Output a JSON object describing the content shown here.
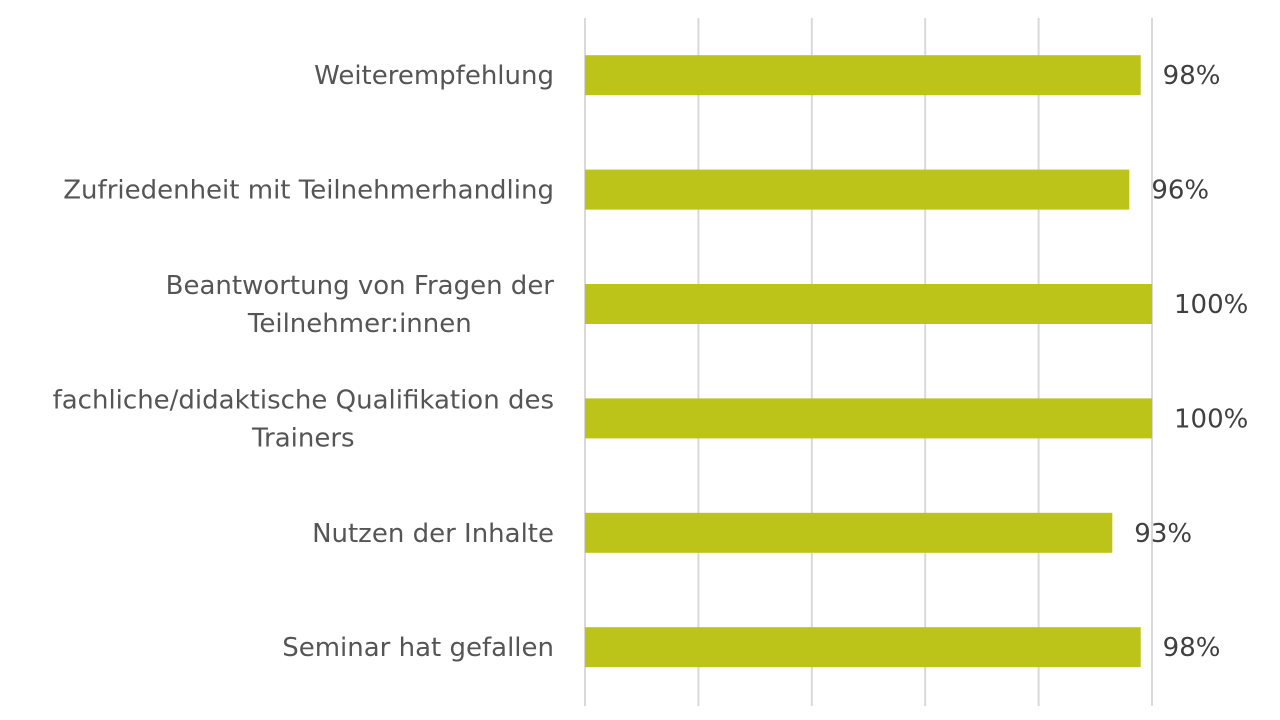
{
  "chart_data": {
    "type": "bar",
    "orientation": "horizontal",
    "title": "",
    "xlabel": "",
    "ylabel": "",
    "xlim": [
      0,
      100
    ],
    "grid": true,
    "bar_color": "#bcc319",
    "categories": [
      [
        "Weiterempfehlung"
      ],
      [
        "Zufriedenheit mit Teilnehmerhandling"
      ],
      [
        "Beantwortung von Fragen der",
        "Teilnehmer:innen"
      ],
      [
        "fachliche/didaktische Qualifikation des",
        "Trainers"
      ],
      [
        "Nutzen der Inhalte"
      ],
      [
        "Seminar hat gefallen"
      ]
    ],
    "values": [
      98,
      96,
      100,
      100,
      93,
      98
    ],
    "value_labels": [
      "98%",
      "96%",
      "100%",
      "100%",
      "93%",
      "98%"
    ]
  }
}
